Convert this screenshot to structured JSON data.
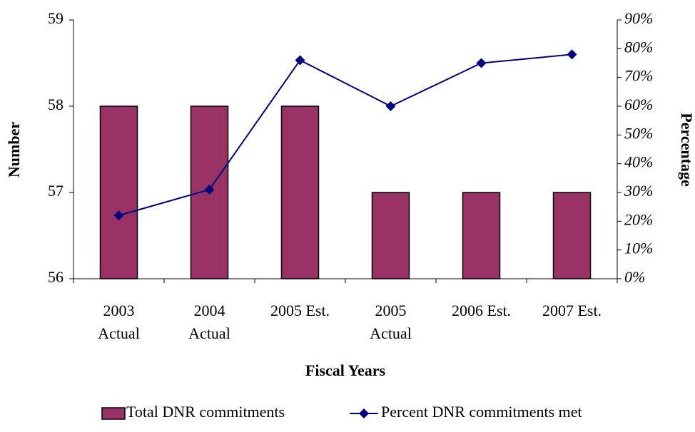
{
  "chart_data": {
    "type": "bar",
    "x_label": "Fiscal Years",
    "y_label": "Number",
    "y2_label": "Percentage",
    "categories": [
      "2003\nActual",
      "2004\nActual",
      "2005 Est.",
      "2005\nActual",
      "2006 Est.",
      "2007 Est."
    ],
    "series": [
      {
        "name": "Total DNR commitments",
        "type": "bar",
        "color": "#993366",
        "values": [
          58,
          58,
          58,
          57,
          57,
          57
        ]
      },
      {
        "name": "Percent DNR commitments met",
        "type": "line",
        "axis": "y2",
        "color": "#000080",
        "values": [
          22,
          31,
          76,
          60,
          75,
          78
        ]
      }
    ],
    "ylim": [
      56,
      59
    ],
    "yticks": [
      56,
      57,
      58,
      59
    ],
    "y2lim": [
      0,
      90
    ],
    "y2ticks": [
      {
        "value": 0,
        "label": "0%"
      },
      {
        "value": 10,
        "label": "10%"
      },
      {
        "value": 20,
        "label": "20%"
      },
      {
        "value": 30,
        "label": "30%"
      },
      {
        "value": 40,
        "label": "40%"
      },
      {
        "value": 50,
        "label": "50%"
      },
      {
        "value": 60,
        "label": "60%"
      },
      {
        "value": 70,
        "label": "70%"
      },
      {
        "value": 80,
        "label": "80%"
      },
      {
        "value": 90,
        "label": "90%"
      }
    ],
    "legend": "bottom"
  }
}
